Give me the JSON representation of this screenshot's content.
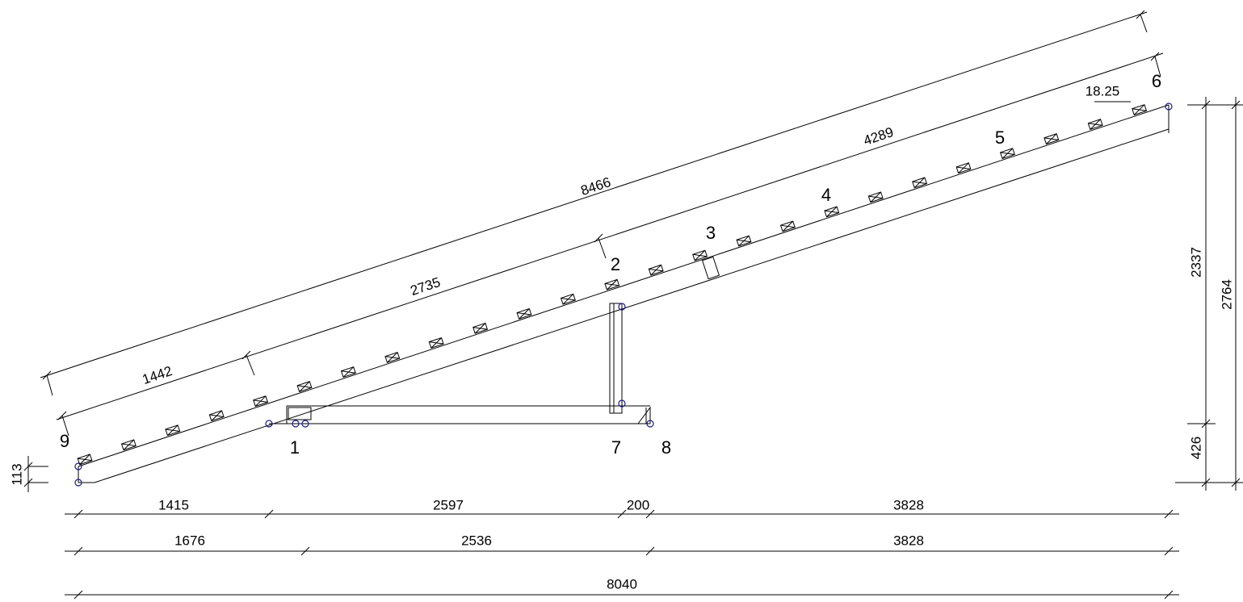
{
  "node_labels": [
    "1",
    "2",
    "3",
    "4",
    "5",
    "6",
    "7",
    "8",
    "9"
  ],
  "dimensions": {
    "slope_total": 8466,
    "slope_segments": [
      1442,
      2735,
      4289
    ],
    "batten_spacing": 18.25,
    "horizontal_row1": [
      1415,
      2597,
      200,
      3828
    ],
    "horizontal_row2": [
      1676,
      2536,
      3828
    ],
    "horizontal_total": 8040,
    "vertical_segments": [
      2337,
      426
    ],
    "vertical_total": 2764,
    "eave_offset": 113
  }
}
